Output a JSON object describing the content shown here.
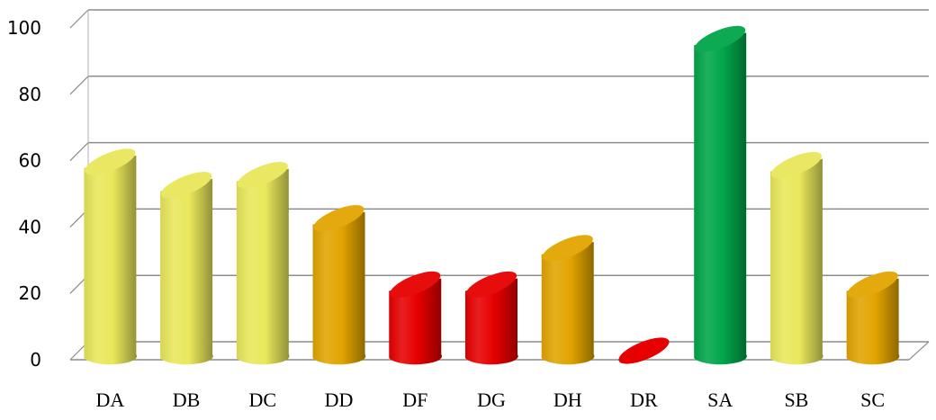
{
  "chart_data": {
    "type": "bar",
    "style": "3d-cylinder",
    "categories": [
      "DA",
      "DB",
      "DC",
      "DD",
      "DF",
      "DG",
      "DH",
      "DR",
      "SA",
      "SB",
      "SC"
    ],
    "values": [
      61,
      54,
      57,
      44,
      24,
      24,
      35,
      0,
      98,
      60,
      24
    ],
    "colors": [
      "#e9e75a",
      "#e9e75a",
      "#e9e75a",
      "#e2a400",
      "#e60000",
      "#e60000",
      "#e2a400",
      "#e60000",
      "#00a64a",
      "#e9e75a",
      "#e2a400"
    ],
    "yticks": [
      "0",
      "20",
      "40",
      "60",
      "80",
      "100"
    ],
    "ylim": [
      0,
      100
    ],
    "grid": true,
    "title": "",
    "xlabel": "",
    "ylabel": ""
  }
}
